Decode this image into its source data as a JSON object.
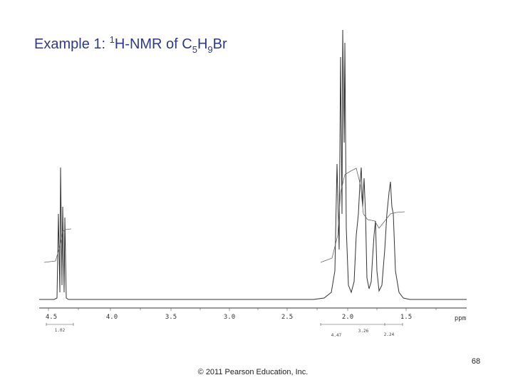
{
  "slide": {
    "title": {
      "prefix": "Example 1: ",
      "sup": "1",
      "mid": "H-NMR of C",
      "sub1": "5",
      "h": "H",
      "sub2": "9",
      "end": "Br"
    },
    "axis_labels": [
      "4.5",
      "4.0",
      "3.5",
      "3.0",
      "2.5",
      "2.0",
      "1.5",
      "ppm"
    ],
    "integrations": [
      "1.02",
      "4.47",
      "3.26",
      "2.24"
    ],
    "footer": "© 2011 Pearson Education, Inc.",
    "page_number": "68"
  }
}
